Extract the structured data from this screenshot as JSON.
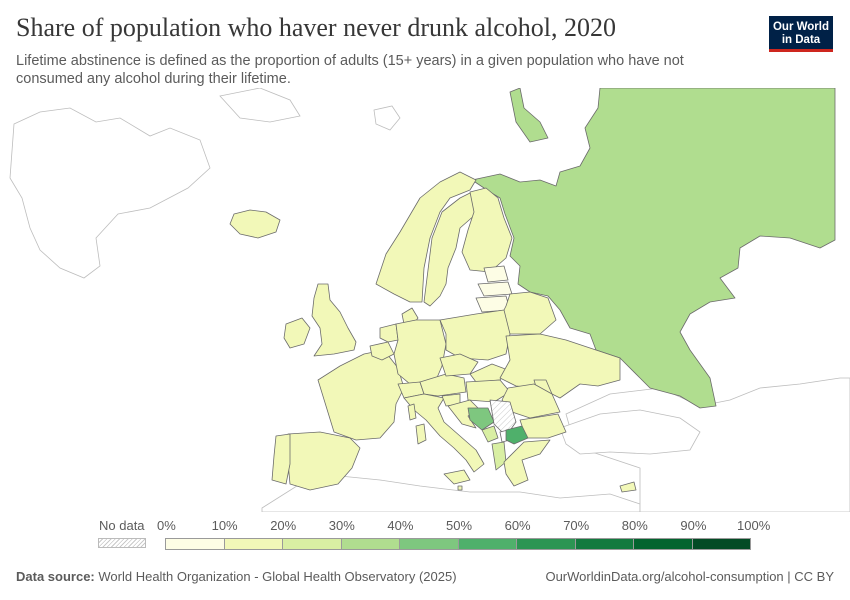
{
  "header": {
    "title": "Share of population who haver never drunk alcohol, 2020",
    "subtitle": "Lifetime abstinence is defined as the proportion of adults (15+ years) in a given population who have not consumed any alcohol during their lifetime."
  },
  "logo": {
    "line1": "Our World",
    "line2": "in Data"
  },
  "legend": {
    "no_data_label": "No data",
    "ticks": [
      "0%",
      "10%",
      "20%",
      "30%",
      "40%",
      "50%",
      "60%",
      "70%",
      "80%",
      "90%",
      "100%"
    ],
    "bin_colors": [
      "#fdfde5",
      "#f2f8b8",
      "#d9efa3",
      "#b0dd8f",
      "#7ec77f",
      "#4fb06b",
      "#2c9553",
      "#137a3f",
      "#03642f",
      "#034b25",
      "#063620"
    ]
  },
  "footer": {
    "source_label": "Data source:",
    "source_text": "World Health Organization - Global Health Observatory (2025)",
    "url": "OurWorldinData.org/alcohol-consumption | CC BY"
  },
  "colors": {
    "no_data": "#ffffff",
    "under_10": "#fdfde5",
    "10_20": "#f2f8b8",
    "20_30": "#d9efa3",
    "30_40": "#b0dd8f",
    "40_50": "#7ec77f",
    "50_60": "#4fb06b"
  }
}
